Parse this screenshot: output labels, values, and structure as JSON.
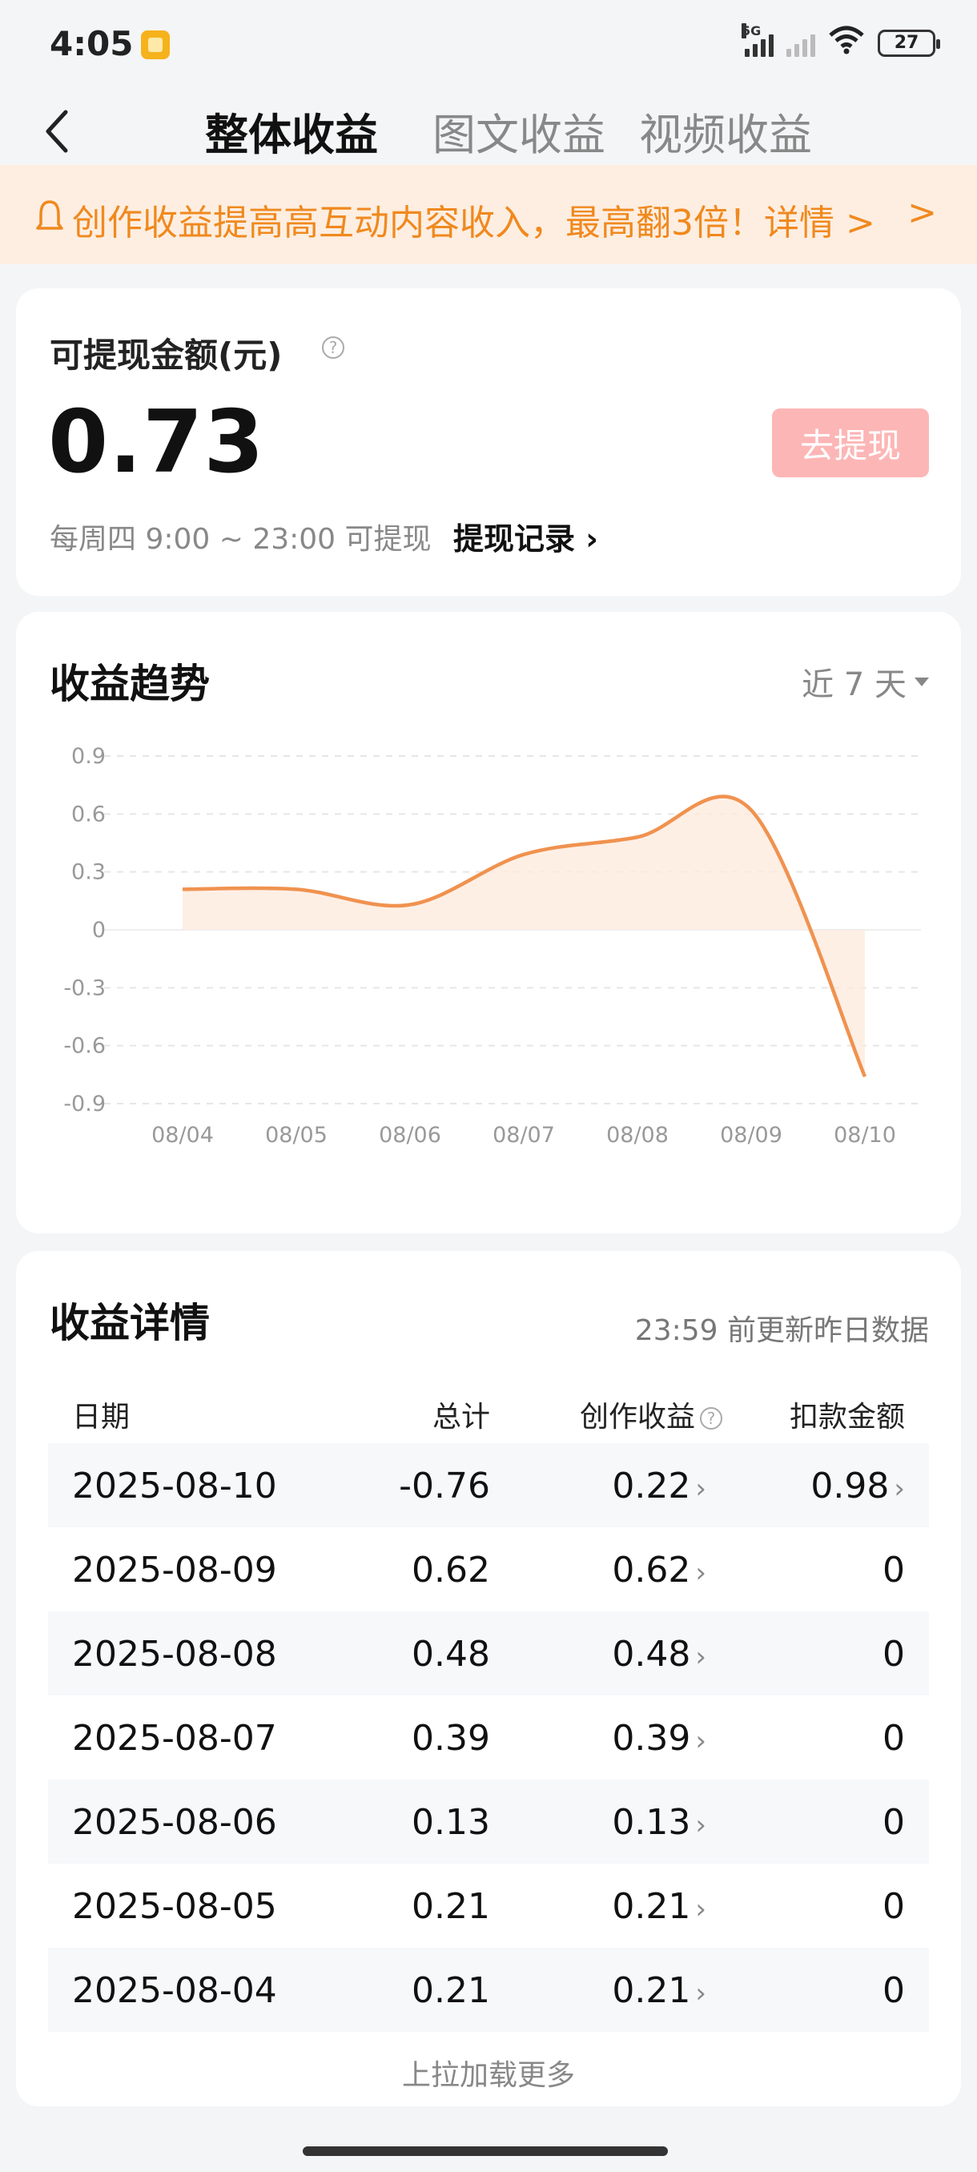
{
  "status_bar": {
    "time": "4:05",
    "network": "5G",
    "battery": "27"
  },
  "tabs": [
    {
      "label": "整体收益",
      "active": true
    },
    {
      "label": "图文收益",
      "active": false
    },
    {
      "label": "视频收益",
      "active": false
    }
  ],
  "banner": {
    "text": "创作收益提高高互动内容收入，最高翻3倍！详情 >",
    "arrow": ">"
  },
  "balance": {
    "label": "可提现金额(元)",
    "help": "?",
    "value": "0.73",
    "withdraw_button": "去提现",
    "note": "每周四 9:00 ~ 23:00 可提现",
    "record_link": "提现记录 ›"
  },
  "trend": {
    "title": "收益趋势",
    "range": "近 7 天"
  },
  "chart_data": {
    "type": "area",
    "x": [
      "08/04",
      "08/05",
      "08/06",
      "08/07",
      "08/08",
      "08/09",
      "08/10"
    ],
    "values": [
      0.21,
      0.21,
      0.13,
      0.39,
      0.48,
      0.62,
      -0.76
    ],
    "ylim": [
      -0.9,
      0.9
    ],
    "yticks": [
      0.9,
      0.6,
      0.3,
      0,
      -0.3,
      -0.6,
      -0.9
    ],
    "ytick_labels": [
      "0.9",
      "0.6",
      "0.3",
      "0",
      "-0.3",
      "-0.6",
      "-0.9"
    ],
    "grid": true,
    "line_color": "#f0924f",
    "fill_color": "#fde9dc"
  },
  "detail": {
    "title": "收益详情",
    "note": "23:59 前更新昨日数据",
    "columns": {
      "date": "日期",
      "total": "总计",
      "income": "创作收益",
      "deduct": "扣款金额"
    },
    "rows": [
      {
        "date": "2025-08-10",
        "total": "-0.76",
        "income": "0.22",
        "deduct": "0.98"
      },
      {
        "date": "2025-08-09",
        "total": "0.62",
        "income": "0.62",
        "deduct": "0"
      },
      {
        "date": "2025-08-08",
        "total": "0.48",
        "income": "0.48",
        "deduct": "0"
      },
      {
        "date": "2025-08-07",
        "total": "0.39",
        "income": "0.39",
        "deduct": "0"
      },
      {
        "date": "2025-08-06",
        "total": "0.13",
        "income": "0.13",
        "deduct": "0"
      },
      {
        "date": "2025-08-05",
        "total": "0.21",
        "income": "0.21",
        "deduct": "0"
      },
      {
        "date": "2025-08-04",
        "total": "0.21",
        "income": "0.21",
        "deduct": "0"
      }
    ],
    "load_more": "上拉加载更多"
  }
}
